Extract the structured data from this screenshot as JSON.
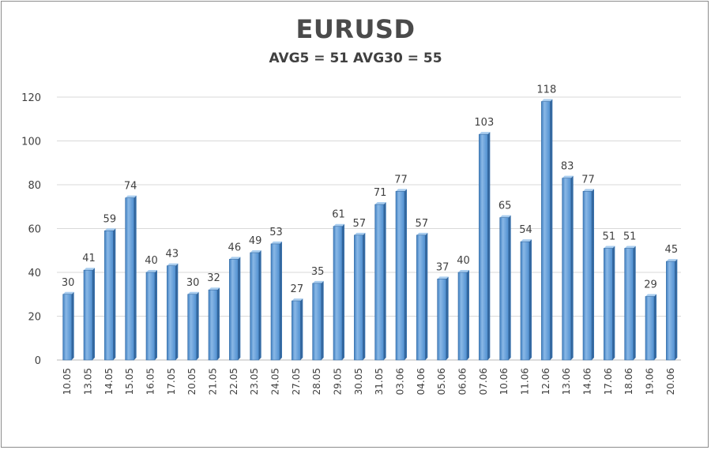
{
  "chart_data": {
    "type": "bar",
    "title": "EURUSD",
    "subtitle": "AVG5 = 51 AVG30 = 55",
    "xlabel": "",
    "ylabel": "",
    "ylim": [
      0,
      120
    ],
    "yticks": [
      0,
      20,
      40,
      60,
      80,
      100,
      120
    ],
    "grid": true,
    "categories": [
      "10.05",
      "13.05",
      "14.05",
      "15.05",
      "16.05",
      "17.05",
      "20.05",
      "21.05",
      "22.05",
      "23.05",
      "24.05",
      "27.05",
      "28.05",
      "29.05",
      "30.05",
      "31.05",
      "03.06",
      "04.06",
      "05.06",
      "06.06",
      "07.06",
      "10.06",
      "11.06",
      "12.06",
      "13.06",
      "14.06",
      "17.06",
      "18.06",
      "19.06",
      "20.06"
    ],
    "values": [
      30,
      41,
      59,
      74,
      40,
      43,
      30,
      32,
      46,
      49,
      53,
      27,
      35,
      61,
      57,
      71,
      77,
      57,
      37,
      40,
      103,
      65,
      54,
      118,
      83,
      77,
      51,
      51,
      29,
      45
    ],
    "bar_color": "#5b9bd5"
  }
}
